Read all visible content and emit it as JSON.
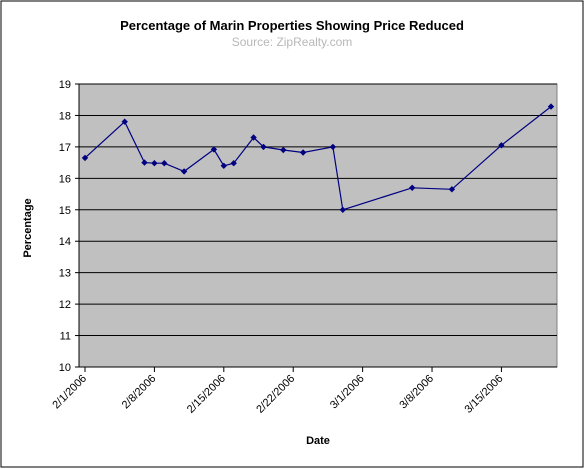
{
  "chart_data": {
    "type": "line",
    "title": "Percentage of Marin Properties Showing Price Reduced",
    "subtitle": "Source: ZipRealty.com",
    "xlabel": "Date",
    "ylabel": "Percentage",
    "ylim": [
      10,
      19
    ],
    "xlim": [
      "2/1/2006",
      "3/20/2006"
    ],
    "y_ticks": [
      "10",
      "11",
      "12",
      "13",
      "14",
      "15",
      "16",
      "17",
      "18",
      "19"
    ],
    "x_ticks": [
      "2/1/2006",
      "2/8/2006",
      "2/15/2006",
      "2/22/2006",
      "3/1/2006",
      "3/8/2006",
      "3/15/2006"
    ],
    "grid": true,
    "plot_background": "#c0c0c0",
    "line_color": "#000080",
    "marker": "diamond",
    "series": [
      {
        "x": [
          "2/1/2006",
          "2/5/2006",
          "2/7/2006",
          "2/8/2006",
          "2/9/2006",
          "2/11/2006",
          "2/14/2006",
          "2/15/2006",
          "2/16/2006",
          "2/18/2006",
          "2/19/2006",
          "2/21/2006",
          "2/23/2006",
          "2/26/2006",
          "2/27/2006",
          "3/6/2006",
          "3/10/2006",
          "3/15/2006",
          "3/20/2006"
        ],
        "values": [
          16.65,
          17.8,
          16.5,
          16.48,
          16.48,
          16.22,
          16.92,
          16.4,
          16.48,
          17.3,
          17.0,
          16.9,
          16.82,
          17.0,
          15.0,
          15.7,
          15.65,
          17.05,
          18.28
        ]
      }
    ]
  }
}
